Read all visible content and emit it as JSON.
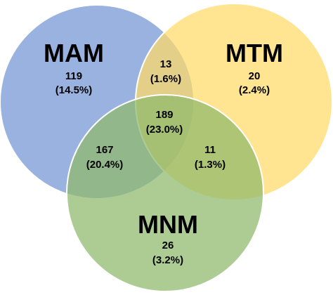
{
  "colors": {
    "mam": "#8FAADC",
    "mtm": "#FFD966",
    "mnm": "#A9D18E",
    "outline": "#FFFFFF"
  },
  "sets": {
    "mam": {
      "name": "MAM"
    },
    "mtm": {
      "name": "MTM"
    },
    "mnm": {
      "name": "MNM"
    }
  },
  "regions": {
    "mam_only": {
      "count": "119",
      "percent": "(14.5%)"
    },
    "mtm_only": {
      "count": "20",
      "percent": "(2.4%)"
    },
    "mnm_only": {
      "count": "26",
      "percent": "(3.2%)"
    },
    "mam_mtm": {
      "count": "13",
      "percent": "(1.6%)"
    },
    "mam_mnm": {
      "count": "167",
      "percent": "(20.4%)"
    },
    "mtm_mnm": {
      "count": "11",
      "percent": "(1.3%)"
    },
    "all": {
      "count": "189",
      "percent": "(23.0%)"
    }
  }
}
